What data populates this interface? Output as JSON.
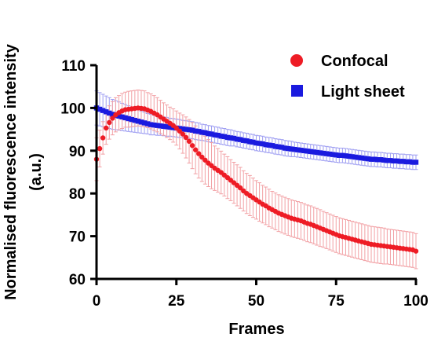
{
  "chart_data": {
    "type": "scatter",
    "xlabel": "Frames",
    "ylabel_line1": "Normalised fluorescence intensity",
    "ylabel_line2": "(a.u.)",
    "xlim": [
      0,
      100
    ],
    "ylim": [
      60,
      110
    ],
    "xticks": [
      0,
      25,
      50,
      75,
      100
    ],
    "yticks": [
      60,
      70,
      80,
      90,
      100,
      110
    ],
    "x_tick_labels": [
      "0",
      "25",
      "50",
      "75",
      "100"
    ],
    "y_tick_labels": [
      "60",
      "70",
      "80",
      "90",
      "100",
      "110"
    ],
    "grid": false,
    "legend_position": "top-right",
    "series": [
      {
        "name": "Confocal",
        "color": "#ee1c25",
        "marker": "circle",
        "x": [
          0,
          1,
          2,
          3,
          4,
          5,
          6,
          7,
          8,
          9,
          10,
          11,
          12,
          13,
          14,
          15,
          16,
          17,
          18,
          19,
          20,
          21,
          22,
          23,
          24,
          25,
          26,
          27,
          28,
          29,
          30,
          31,
          32,
          33,
          34,
          35,
          36,
          37,
          38,
          39,
          40,
          41,
          42,
          43,
          44,
          45,
          46,
          47,
          48,
          49,
          50,
          51,
          52,
          53,
          54,
          55,
          56,
          57,
          58,
          59,
          60,
          61,
          62,
          63,
          64,
          65,
          66,
          67,
          68,
          69,
          70,
          71,
          72,
          73,
          74,
          75,
          76,
          77,
          78,
          79,
          80,
          81,
          82,
          83,
          84,
          85,
          86,
          87,
          88,
          89,
          90,
          91,
          92,
          93,
          94,
          95,
          96,
          97,
          98,
          99,
          100
        ],
        "y": [
          88.0,
          90.5,
          93.0,
          95.3,
          96.6,
          97.6,
          98.4,
          98.9,
          99.3,
          99.6,
          99.7,
          99.8,
          99.9,
          100.0,
          99.9,
          99.8,
          99.5,
          99.2,
          98.8,
          98.4,
          97.9,
          97.4,
          96.9,
          96.4,
          95.9,
          95.3,
          94.6,
          93.9,
          93.1,
          92.2,
          91.2,
          90.2,
          89.3,
          88.5,
          87.8,
          87.1,
          86.5,
          85.9,
          85.4,
          84.9,
          84.3,
          83.7,
          83.1,
          82.5,
          81.9,
          81.3,
          80.6,
          80.0,
          79.5,
          79.0,
          78.5,
          78.0,
          77.5,
          77.1,
          76.6,
          76.2,
          75.8,
          75.4,
          75.1,
          74.8,
          74.5,
          74.2,
          74.0,
          73.8,
          73.6,
          73.3,
          73.0,
          72.8,
          72.5,
          72.2,
          71.9,
          71.6,
          71.3,
          71.0,
          70.7,
          70.4,
          70.1,
          69.9,
          69.7,
          69.5,
          69.3,
          69.1,
          68.9,
          68.7,
          68.5,
          68.3,
          68.1,
          68.0,
          67.9,
          67.8,
          67.7,
          67.6,
          67.5,
          67.4,
          67.3,
          67.2,
          67.1,
          67.0,
          66.9,
          66.8,
          66.5
        ],
        "error": [
          5.0,
          4.3,
          3.8,
          3.8,
          3.9,
          3.9,
          4.0,
          4.0,
          4.1,
          4.1,
          4.2,
          4.2,
          4.2,
          4.2,
          4.2,
          4.2,
          4.1,
          4.1,
          4.1,
          4.0,
          3.9,
          3.8,
          3.8,
          3.8,
          3.9,
          4.0,
          4.2,
          4.5,
          4.8,
          5.1,
          5.4,
          5.6,
          5.7,
          5.7,
          5.6,
          5.5,
          5.4,
          5.2,
          5.1,
          5.0,
          4.9,
          4.9,
          4.8,
          4.8,
          4.8,
          4.8,
          4.7,
          4.7,
          4.7,
          4.6,
          4.5,
          4.5,
          4.4,
          4.4,
          4.4,
          4.3,
          4.3,
          4.3,
          4.3,
          4.3,
          4.3,
          4.3,
          4.3,
          4.3,
          4.3,
          4.3,
          4.3,
          4.3,
          4.3,
          4.3,
          4.3,
          4.2,
          4.2,
          4.2,
          4.2,
          4.2,
          4.2,
          4.2,
          4.2,
          4.2,
          4.2,
          4.2,
          4.2,
          4.2,
          4.2,
          4.2,
          4.2,
          4.2,
          4.2,
          4.2,
          4.2,
          4.1,
          4.1,
          4.1,
          4.1,
          4.1,
          4.1,
          4.1,
          4.1,
          4.1,
          4.1
        ]
      },
      {
        "name": "Light sheet",
        "color": "#1a1adf",
        "marker": "square",
        "x": [
          0,
          1,
          2,
          3,
          4,
          5,
          6,
          7,
          8,
          9,
          10,
          11,
          12,
          13,
          14,
          15,
          16,
          17,
          18,
          19,
          20,
          21,
          22,
          23,
          24,
          25,
          26,
          27,
          28,
          29,
          30,
          31,
          32,
          33,
          34,
          35,
          36,
          37,
          38,
          39,
          40,
          41,
          42,
          43,
          44,
          45,
          46,
          47,
          48,
          49,
          50,
          51,
          52,
          53,
          54,
          55,
          56,
          57,
          58,
          59,
          60,
          61,
          62,
          63,
          64,
          65,
          66,
          67,
          68,
          69,
          70,
          71,
          72,
          73,
          74,
          75,
          76,
          77,
          78,
          79,
          80,
          81,
          82,
          83,
          84,
          85,
          86,
          87,
          88,
          89,
          90,
          91,
          92,
          93,
          94,
          95,
          96,
          97,
          98,
          99,
          100
        ],
        "y": [
          100.0,
          99.7,
          99.4,
          99.1,
          98.8,
          98.5,
          98.3,
          98.1,
          97.9,
          97.7,
          97.5,
          97.3,
          97.1,
          96.9,
          96.7,
          96.5,
          96.3,
          96.1,
          96.0,
          95.9,
          95.8,
          95.7,
          95.6,
          95.5,
          95.4,
          95.3,
          95.2,
          95.1,
          95.0,
          94.9,
          94.8,
          94.6,
          94.5,
          94.3,
          94.2,
          94.0,
          93.9,
          93.7,
          93.6,
          93.4,
          93.3,
          93.1,
          93.0,
          92.9,
          92.7,
          92.6,
          92.4,
          92.3,
          92.1,
          92.0,
          91.8,
          91.7,
          91.6,
          91.4,
          91.3,
          91.2,
          91.0,
          90.9,
          90.8,
          90.6,
          90.5,
          90.4,
          90.3,
          90.2,
          90.1,
          90.0,
          89.9,
          89.8,
          89.7,
          89.6,
          89.5,
          89.4,
          89.3,
          89.2,
          89.1,
          89.0,
          88.9,
          88.9,
          88.8,
          88.7,
          88.6,
          88.5,
          88.4,
          88.3,
          88.2,
          88.1,
          88.0,
          88.0,
          87.9,
          87.9,
          87.8,
          87.7,
          87.7,
          87.6,
          87.6,
          87.5,
          87.5,
          87.4,
          87.4,
          87.3,
          87.3
        ],
        "error": [
          4.0,
          3.9,
          3.8,
          3.7,
          3.6,
          3.5,
          3.4,
          3.3,
          3.2,
          3.1,
          3.0,
          2.9,
          2.8,
          2.7,
          2.6,
          2.5,
          2.4,
          2.4,
          2.3,
          2.3,
          2.2,
          2.2,
          2.2,
          2.1,
          2.1,
          2.1,
          2.1,
          2.0,
          2.0,
          2.0,
          2.0,
          2.0,
          2.0,
          1.9,
          1.9,
          1.9,
          1.9,
          1.9,
          1.9,
          1.9,
          1.9,
          1.9,
          1.9,
          1.8,
          1.8,
          1.8,
          1.8,
          1.8,
          1.8,
          1.8,
          1.8,
          1.8,
          1.8,
          1.8,
          1.8,
          1.8,
          1.8,
          1.8,
          1.8,
          1.8,
          1.8,
          1.8,
          1.7,
          1.7,
          1.7,
          1.7,
          1.7,
          1.7,
          1.7,
          1.7,
          1.7,
          1.7,
          1.7,
          1.7,
          1.7,
          1.7,
          1.7,
          1.7,
          1.7,
          1.7,
          1.7,
          1.7,
          1.7,
          1.7,
          1.7,
          1.7,
          1.7,
          1.7,
          1.7,
          1.7,
          1.7,
          1.7,
          1.7,
          1.7,
          1.7,
          1.7,
          1.7,
          1.7,
          1.7,
          1.7,
          1.7
        ]
      }
    ]
  }
}
